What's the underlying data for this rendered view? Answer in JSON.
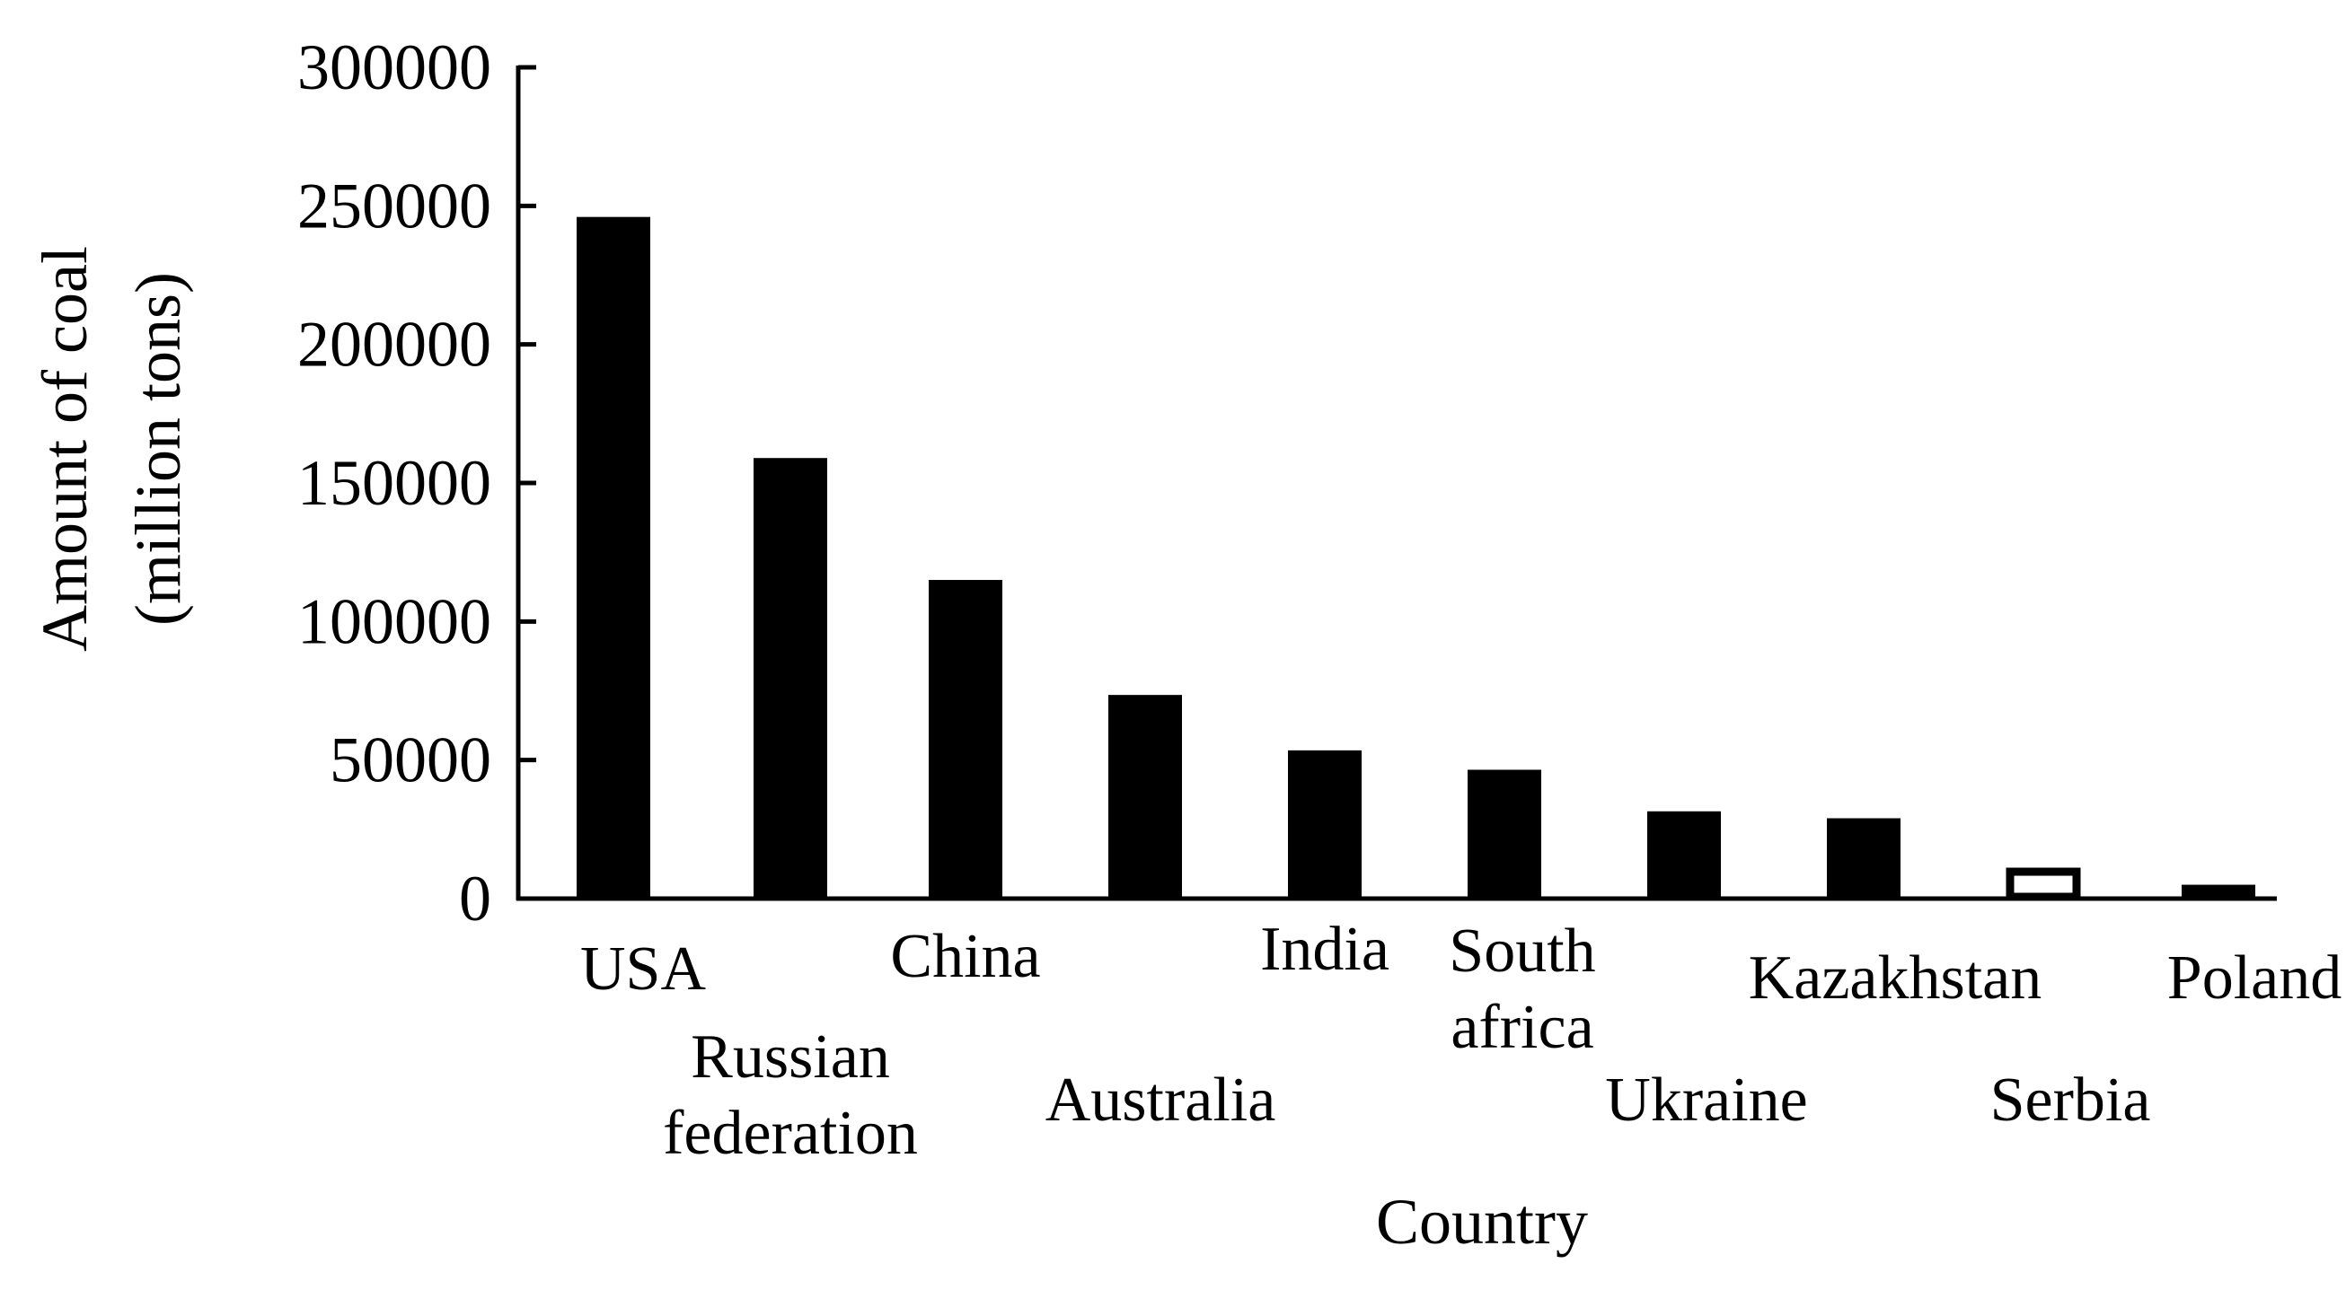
{
  "chart_data": {
    "type": "bar",
    "title": "",
    "xlabel": "Country",
    "ylabel": [
      "Amount of coal",
      "(million tons)"
    ],
    "ylim": [
      0,
      300000
    ],
    "yticks": [
      "0",
      "50000",
      "100000",
      "150000",
      "200000",
      "250000",
      "300000"
    ],
    "grid": false,
    "categories": [
      "USA",
      "Russian federation",
      "China",
      "Australia",
      "India",
      "South africa",
      "Ukraine",
      "Kazakhstan",
      "Serbia",
      "Poland"
    ],
    "category_label_lines": [
      [
        "USA"
      ],
      [
        "Russian",
        "federation"
      ],
      [
        "China"
      ],
      [
        "Australia"
      ],
      [
        "India"
      ],
      [
        "South",
        "africa"
      ],
      [
        "Ukraine"
      ],
      [
        "Kazakhstan"
      ],
      [
        "Serbia"
      ],
      [
        "Poland"
      ]
    ],
    "values": [
      246000,
      159000,
      115000,
      73500,
      53500,
      46500,
      31500,
      29000,
      11000,
      5000
    ],
    "bar_fill": [
      "#000000",
      "#000000",
      "#000000",
      "#000000",
      "#000000",
      "#000000",
      "#000000",
      "#000000",
      "#ffffff",
      "#000000"
    ],
    "bar_color": "#000000"
  }
}
